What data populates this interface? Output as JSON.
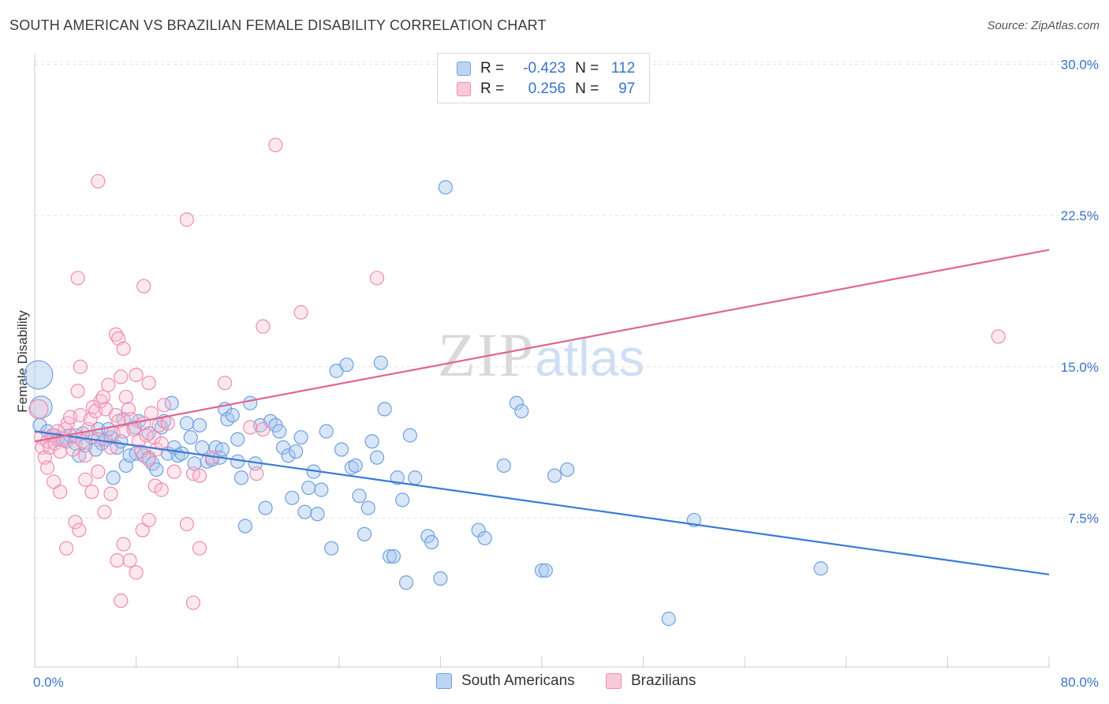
{
  "title": "SOUTH AMERICAN VS BRAZILIAN FEMALE DISABILITY CORRELATION CHART",
  "source": "Source: ZipAtlas.com",
  "watermark": {
    "zip": "ZIP",
    "atlas": "atlas"
  },
  "legend": {
    "rows": [
      {
        "r_label": "R =",
        "r_value": "-0.423",
        "n_label": "N =",
        "n_value": "112",
        "color": "#6fa0e0"
      },
      {
        "r_label": "R =",
        "r_value": "0.256",
        "n_label": "N =",
        "n_value": "97",
        "color": "#f08cb0"
      }
    ]
  },
  "bottom_legend": {
    "items": [
      "South Americans",
      "Brazilians"
    ]
  },
  "colors": {
    "blue": "#3a7bd5",
    "blue_fill": "#a9c7f0",
    "pink": "#e06690",
    "pink_fill": "#f7bcd1",
    "accent_text": "#3a73c8"
  },
  "chart_data": {
    "type": "scatter",
    "title": "SOUTH AMERICAN VS BRAZILIAN FEMALE DISABILITY CORRELATION CHART",
    "xlabel": "",
    "ylabel": "Female Disability",
    "xlim": [
      0,
      80
    ],
    "ylim": [
      0,
      31
    ],
    "x_tick_labels": [
      "0.0%",
      "80.0%"
    ],
    "y_ticks": [
      7.5,
      15.0,
      22.5,
      30.0
    ],
    "y_tick_labels": [
      "7.5%",
      "15.0%",
      "22.5%",
      "30.0%"
    ],
    "grid": true,
    "legend_position": "top-center",
    "series": [
      {
        "name": "South Americans",
        "color": "#3a7bd5",
        "r": -0.423,
        "n": 112,
        "trend": {
          "x": [
            0,
            80
          ],
          "y": [
            11.8,
            4.7
          ]
        },
        "points": [
          [
            0.3,
            14.6
          ],
          [
            0.5,
            13.0
          ],
          [
            0.4,
            12.1
          ],
          [
            1.0,
            11.8
          ],
          [
            1.5,
            11.6
          ],
          [
            1.8,
            11.4
          ],
          [
            2.2,
            11.5
          ],
          [
            2.5,
            11.3
          ],
          [
            2.8,
            11.6
          ],
          [
            3.2,
            11.2
          ],
          [
            3.5,
            10.6
          ],
          [
            4.0,
            11.1
          ],
          [
            4.5,
            11.5
          ],
          [
            5.0,
            11.9
          ],
          [
            5.3,
            11.2
          ],
          [
            5.6,
            11.4
          ],
          [
            6.0,
            11.5
          ],
          [
            6.2,
            9.5
          ],
          [
            6.5,
            11.0
          ],
          [
            7.0,
            12.4
          ],
          [
            7.2,
            10.1
          ],
          [
            7.5,
            10.6
          ],
          [
            8.0,
            10.7
          ],
          [
            8.2,
            12.3
          ],
          [
            8.6,
            10.6
          ],
          [
            9.0,
            10.5
          ],
          [
            9.3,
            10.2
          ],
          [
            9.6,
            9.9
          ],
          [
            10.0,
            12.0
          ],
          [
            10.2,
            12.3
          ],
          [
            10.5,
            10.7
          ],
          [
            10.8,
            13.2
          ],
          [
            11.0,
            11.0
          ],
          [
            11.3,
            10.6
          ],
          [
            11.6,
            10.7
          ],
          [
            12.0,
            12.2
          ],
          [
            12.3,
            11.5
          ],
          [
            12.6,
            10.2
          ],
          [
            13.0,
            12.1
          ],
          [
            13.2,
            11.0
          ],
          [
            13.6,
            10.3
          ],
          [
            14.0,
            10.4
          ],
          [
            14.3,
            11.0
          ],
          [
            14.6,
            10.5
          ],
          [
            15.0,
            12.9
          ],
          [
            15.2,
            12.4
          ],
          [
            15.6,
            12.6
          ],
          [
            16.0,
            10.3
          ],
          [
            16.3,
            9.5
          ],
          [
            16.6,
            7.1
          ],
          [
            17.0,
            13.2
          ],
          [
            17.4,
            10.2
          ],
          [
            17.8,
            12.1
          ],
          [
            18.2,
            8.0
          ],
          [
            18.6,
            12.3
          ],
          [
            19.0,
            12.1
          ],
          [
            19.3,
            11.8
          ],
          [
            19.6,
            11.0
          ],
          [
            20.0,
            10.6
          ],
          [
            20.3,
            8.5
          ],
          [
            20.6,
            10.8
          ],
          [
            21.0,
            11.5
          ],
          [
            21.3,
            7.8
          ],
          [
            21.6,
            9.0
          ],
          [
            22.0,
            9.8
          ],
          [
            22.3,
            7.7
          ],
          [
            22.6,
            8.9
          ],
          [
            23.0,
            11.8
          ],
          [
            23.4,
            6.0
          ],
          [
            23.8,
            14.8
          ],
          [
            24.2,
            10.9
          ],
          [
            24.6,
            15.1
          ],
          [
            25.0,
            10.0
          ],
          [
            25.3,
            10.1
          ],
          [
            25.6,
            8.6
          ],
          [
            26.0,
            6.7
          ],
          [
            26.3,
            8.0
          ],
          [
            26.6,
            11.3
          ],
          [
            27.0,
            10.5
          ],
          [
            27.3,
            15.2
          ],
          [
            27.6,
            12.9
          ],
          [
            28.0,
            5.6
          ],
          [
            28.3,
            5.6
          ],
          [
            28.6,
            9.5
          ],
          [
            29.0,
            8.4
          ],
          [
            29.3,
            4.3
          ],
          [
            29.6,
            11.6
          ],
          [
            30.0,
            9.5
          ],
          [
            31.0,
            6.6
          ],
          [
            31.3,
            6.3
          ],
          [
            32.0,
            4.5
          ],
          [
            32.4,
            23.9
          ],
          [
            35.0,
            6.9
          ],
          [
            35.5,
            6.5
          ],
          [
            37.0,
            10.1
          ],
          [
            38.0,
            13.2
          ],
          [
            38.4,
            12.8
          ],
          [
            40.0,
            4.9
          ],
          [
            40.3,
            4.9
          ],
          [
            41.0,
            9.6
          ],
          [
            42.0,
            9.9
          ],
          [
            50.0,
            2.5
          ],
          [
            52.0,
            7.4
          ],
          [
            62.0,
            5.0
          ],
          [
            16.0,
            11.4
          ],
          [
            14.8,
            10.9
          ],
          [
            9.0,
            11.7
          ],
          [
            7.9,
            12.0
          ],
          [
            6.8,
            11.3
          ],
          [
            5.8,
            11.9
          ],
          [
            4.8,
            10.9
          ],
          [
            3.8,
            11.7
          ]
        ]
      },
      {
        "name": "Brazilians",
        "color": "#e06690",
        "r": 0.256,
        "n": 97,
        "trend": {
          "x": [
            0,
            80
          ],
          "y": [
            11.3,
            20.8
          ]
        },
        "points": [
          [
            0.3,
            12.9
          ],
          [
            0.5,
            11.5
          ],
          [
            0.6,
            11.0
          ],
          [
            0.8,
            10.5
          ],
          [
            1.0,
            11.3
          ],
          [
            1.2,
            11.0
          ],
          [
            1.4,
            11.6
          ],
          [
            1.6,
            11.2
          ],
          [
            1.8,
            11.8
          ],
          [
            2.0,
            10.8
          ],
          [
            2.2,
            11.4
          ],
          [
            2.4,
            11.9
          ],
          [
            2.6,
            12.2
          ],
          [
            2.8,
            12.5
          ],
          [
            3.0,
            10.9
          ],
          [
            3.2,
            11.6
          ],
          [
            3.4,
            13.8
          ],
          [
            3.6,
            12.6
          ],
          [
            3.8,
            11.3
          ],
          [
            4.0,
            10.6
          ],
          [
            4.2,
            11.9
          ],
          [
            4.4,
            12.4
          ],
          [
            4.6,
            13.0
          ],
          [
            4.8,
            12.8
          ],
          [
            5.0,
            11.4
          ],
          [
            5.2,
            13.3
          ],
          [
            5.4,
            13.5
          ],
          [
            5.6,
            12.9
          ],
          [
            5.8,
            14.1
          ],
          [
            6.0,
            11.0
          ],
          [
            6.2,
            11.7
          ],
          [
            6.4,
            12.6
          ],
          [
            6.6,
            12.3
          ],
          [
            6.8,
            14.5
          ],
          [
            7.0,
            11.8
          ],
          [
            7.2,
            13.5
          ],
          [
            7.4,
            12.9
          ],
          [
            7.6,
            12.4
          ],
          [
            7.8,
            11.9
          ],
          [
            8.0,
            14.6
          ],
          [
            8.2,
            11.3
          ],
          [
            8.4,
            10.8
          ],
          [
            8.6,
            12.2
          ],
          [
            8.8,
            11.6
          ],
          [
            9.0,
            10.4
          ],
          [
            9.2,
            12.7
          ],
          [
            9.4,
            11.5
          ],
          [
            9.6,
            10.9
          ],
          [
            9.8,
            12.1
          ],
          [
            10.0,
            11.2
          ],
          [
            10.2,
            13.1
          ],
          [
            3.4,
            19.4
          ],
          [
            3.6,
            15.0
          ],
          [
            5.0,
            24.2
          ],
          [
            6.4,
            16.6
          ],
          [
            6.6,
            16.4
          ],
          [
            7.0,
            15.9
          ],
          [
            8.6,
            19.0
          ],
          [
            9.0,
            14.2
          ],
          [
            12.0,
            22.3
          ],
          [
            12.5,
            9.7
          ],
          [
            13.0,
            9.6
          ],
          [
            14.0,
            10.5
          ],
          [
            15.0,
            14.2
          ],
          [
            17.0,
            12.0
          ],
          [
            17.5,
            9.7
          ],
          [
            18.0,
            17.0
          ],
          [
            19.0,
            26.0
          ],
          [
            21.0,
            17.7
          ],
          [
            27.0,
            19.4
          ],
          [
            4.0,
            9.4
          ],
          [
            4.5,
            8.8
          ],
          [
            5.0,
            9.8
          ],
          [
            5.5,
            7.8
          ],
          [
            6.0,
            8.7
          ],
          [
            6.5,
            5.4
          ],
          [
            7.0,
            6.2
          ],
          [
            7.5,
            5.4
          ],
          [
            8.0,
            4.8
          ],
          [
            8.5,
            6.9
          ],
          [
            9.0,
            7.4
          ],
          [
            9.5,
            9.1
          ],
          [
            10.0,
            8.9
          ],
          [
            11.0,
            9.8
          ],
          [
            12.0,
            7.2
          ],
          [
            12.5,
            3.3
          ],
          [
            13.0,
            6.0
          ],
          [
            6.8,
            3.4
          ],
          [
            3.2,
            7.3
          ],
          [
            3.5,
            6.9
          ],
          [
            2.5,
            6.0
          ],
          [
            2.0,
            8.8
          ],
          [
            1.5,
            9.3
          ],
          [
            1.0,
            10.0
          ],
          [
            76.0,
            16.5
          ],
          [
            18.0,
            11.9
          ],
          [
            10.5,
            12.2
          ]
        ]
      }
    ]
  }
}
